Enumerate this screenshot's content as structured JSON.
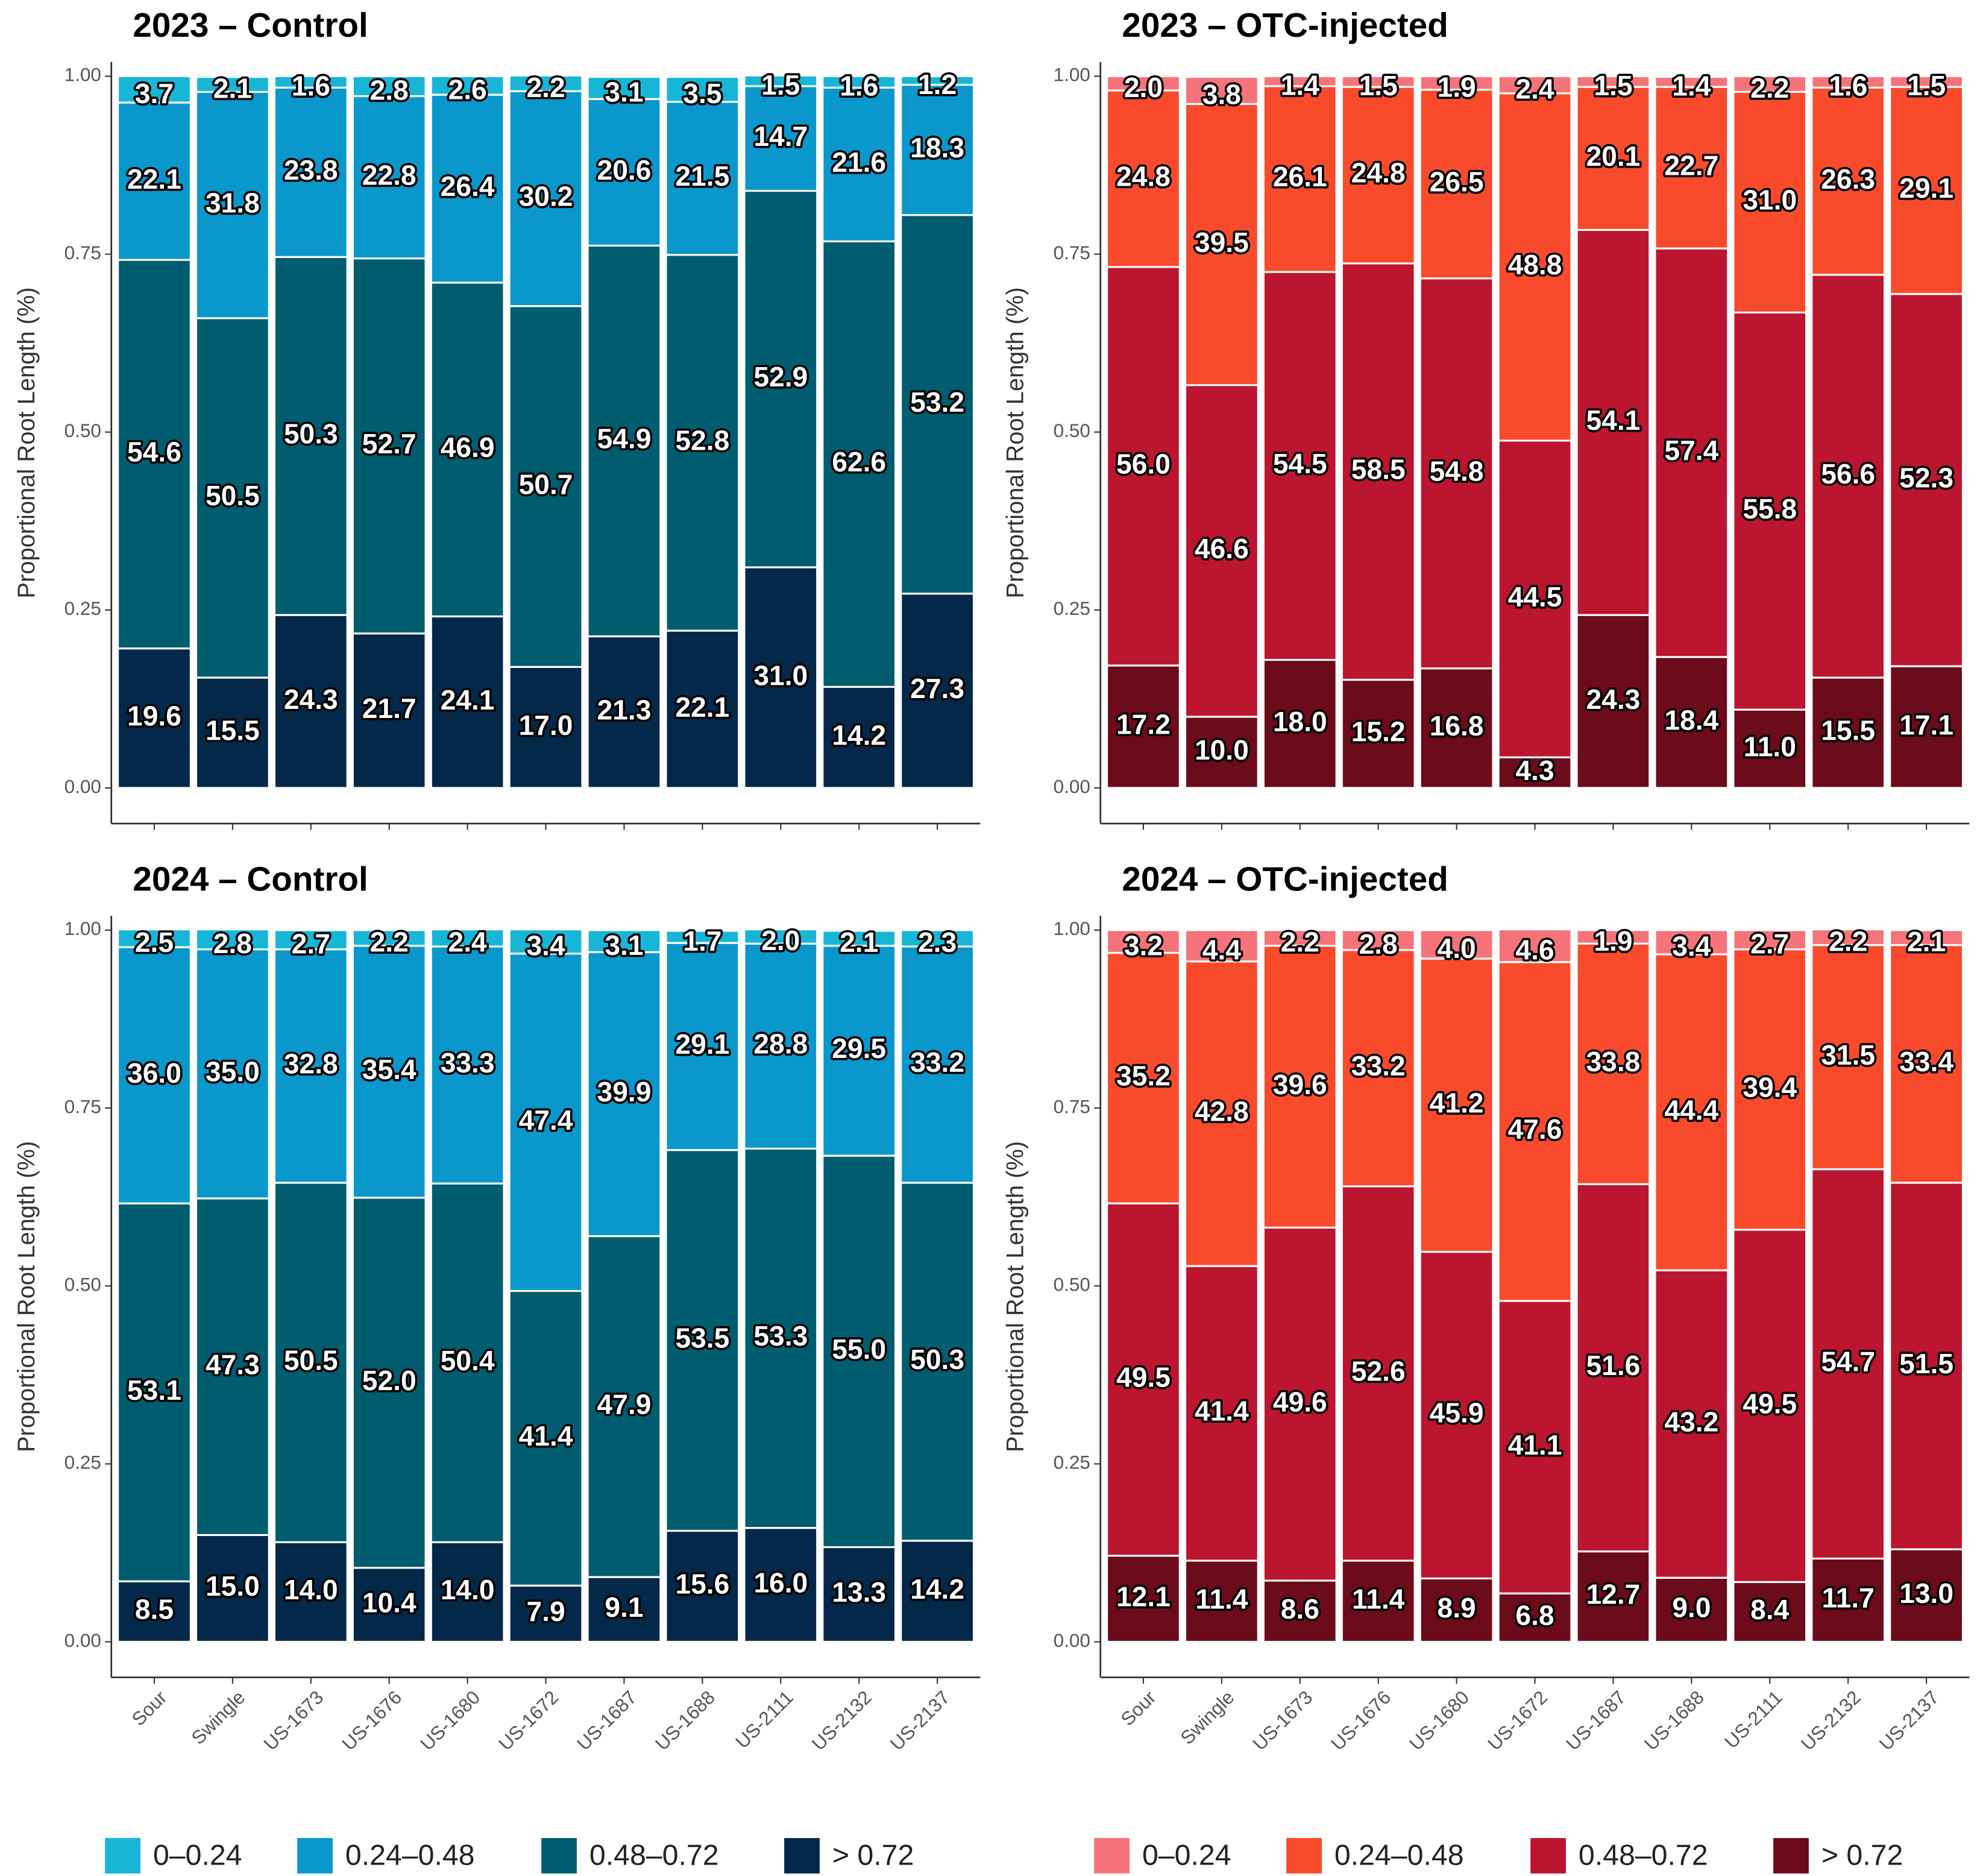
{
  "chart_data": [
    {
      "type": "bar",
      "stacked": true,
      "title": "2023 – Control",
      "y_label": "Proportional Root Length (%)",
      "categories": [
        "Sour",
        "Swingle",
        "US-1673",
        "US-1676",
        "US-1680",
        "US-1672",
        "US-1687",
        "US-1688",
        "US-2111",
        "US-2132",
        "US-2137"
      ],
      "series": [
        {
          "name": "0–0.24",
          "color": "#17b6d6",
          "values": [
            0.037,
            0.021,
            0.016,
            0.028,
            0.026,
            0.022,
            0.031,
            0.035,
            0.015,
            0.016,
            0.012
          ],
          "value_labels": [
            "3.7",
            "2.1",
            "1.6",
            "2.8",
            "2.6",
            "2.2",
            "3.1",
            "3.5",
            "1.5",
            "1.6",
            "1.2"
          ]
        },
        {
          "name": "0.24–0.48",
          "color": "#0a98cc",
          "values": [
            0.221,
            0.318,
            0.238,
            0.228,
            0.264,
            0.302,
            0.206,
            0.215,
            0.147,
            0.216,
            0.183
          ],
          "value_labels": [
            "22.1",
            "31.8",
            "23.8",
            "22.8",
            "26.4",
            "30.2",
            "20.6",
            "21.5",
            "14.7",
            "21.6",
            "18.3"
          ]
        },
        {
          "name": "0.48–0.72",
          "color": "#005d70",
          "values": [
            0.546,
            0.505,
            0.503,
            0.527,
            0.469,
            0.507,
            0.549,
            0.528,
            0.529,
            0.626,
            0.532
          ],
          "value_labels": [
            "54.6",
            "50.5",
            "50.3",
            "52.7",
            "46.9",
            "50.7",
            "54.9",
            "52.8",
            "52.9",
            "62.6",
            "53.2"
          ]
        },
        {
          "name": "> 0.72",
          "color": "#03284a",
          "values": [
            0.196,
            0.155,
            0.243,
            0.217,
            0.241,
            0.17,
            0.213,
            0.221,
            0.31,
            0.142,
            0.273
          ],
          "value_labels": [
            "19.6",
            "15.5",
            "24.3",
            "21.7",
            "24.1",
            "17.0",
            "21.3",
            "22.1",
            "31.0",
            "14.2",
            "27.3"
          ]
        }
      ],
      "ylim": [
        -0.05,
        1.02
      ],
      "yticks": [
        {
          "value": 0,
          "label": "0.00"
        },
        {
          "value": 0.25,
          "label": "0.25"
        },
        {
          "value": 0.5,
          "label": "0.50"
        },
        {
          "value": 0.75,
          "label": "0.75"
        },
        {
          "value": 1,
          "label": "1.00"
        }
      ],
      "show_x_labels": false,
      "show_legend": false
    },
    {
      "type": "bar",
      "stacked": true,
      "title": "2023 – OTC-injected",
      "y_label": "Proportional Root Length (%)",
      "categories": [
        "Sour",
        "Swingle",
        "US-1673",
        "US-1676",
        "US-1680",
        "US-1672",
        "US-1687",
        "US-1688",
        "US-2111",
        "US-2132",
        "US-2137"
      ],
      "series": [
        {
          "name": "0–0.24",
          "color": "#f7737a",
          "values": [
            0.02,
            0.038,
            0.014,
            0.015,
            0.019,
            0.024,
            0.015,
            0.014,
            0.022,
            0.016,
            0.015
          ],
          "value_labels": [
            "2.0",
            "3.8",
            "1.4",
            "1.5",
            "1.9",
            "2.4",
            "1.5",
            "1.4",
            "2.2",
            "1.6",
            "1.5"
          ]
        },
        {
          "name": "0.24–0.48",
          "color": "#fa4a2c",
          "values": [
            0.248,
            0.395,
            0.261,
            0.248,
            0.265,
            0.488,
            0.201,
            0.227,
            0.31,
            0.263,
            0.291
          ],
          "value_labels": [
            "24.8",
            "39.5",
            "26.1",
            "24.8",
            "26.5",
            "48.8",
            "20.1",
            "22.7",
            "31.0",
            "26.3",
            "29.1"
          ]
        },
        {
          "name": "0.48–0.72",
          "color": "#bc1530",
          "values": [
            0.56,
            0.466,
            0.545,
            0.585,
            0.548,
            0.445,
            0.541,
            0.574,
            0.558,
            0.566,
            0.523
          ],
          "value_labels": [
            "56.0",
            "46.6",
            "54.5",
            "58.5",
            "54.8",
            "44.5",
            "54.1",
            "57.4",
            "55.8",
            "56.6",
            "52.3"
          ]
        },
        {
          "name": "> 0.72",
          "color": "#6c0b1a",
          "values": [
            0.172,
            0.1,
            0.18,
            0.152,
            0.168,
            0.043,
            0.243,
            0.184,
            0.11,
            0.155,
            0.171
          ],
          "value_labels": [
            "17.2",
            "10.0",
            "18.0",
            "15.2",
            "16.8",
            "4.3",
            "24.3",
            "18.4",
            "11.0",
            "15.5",
            "17.1"
          ]
        }
      ],
      "ylim": [
        -0.05,
        1.02
      ],
      "yticks": [
        {
          "value": 0,
          "label": "0.00"
        },
        {
          "value": 0.25,
          "label": "0.25"
        },
        {
          "value": 0.5,
          "label": "0.50"
        },
        {
          "value": 0.75,
          "label": "0.75"
        },
        {
          "value": 1,
          "label": "1.00"
        }
      ],
      "show_x_labels": false,
      "show_legend": false
    },
    {
      "type": "bar",
      "stacked": true,
      "title": "2024 – Control",
      "y_label": "Proportional Root Length (%)",
      "categories": [
        "Sour",
        "Swingle",
        "US-1673",
        "US-1676",
        "US-1680",
        "US-1672",
        "US-1687",
        "US-1688",
        "US-2111",
        "US-2132",
        "US-2137"
      ],
      "series": [
        {
          "name": "0–0.24",
          "color": "#17b6d6",
          "values": [
            0.025,
            0.028,
            0.027,
            0.022,
            0.024,
            0.034,
            0.031,
            0.017,
            0.02,
            0.021,
            0.023
          ],
          "value_labels": [
            "2.5",
            "2.8",
            "2.7",
            "2.2",
            "2.4",
            "3.4",
            "3.1",
            "1.7",
            "2.0",
            "2.1",
            "2.3"
          ]
        },
        {
          "name": "0.24–0.48",
          "color": "#0a98cc",
          "values": [
            0.36,
            0.35,
            0.328,
            0.354,
            0.333,
            0.474,
            0.399,
            0.291,
            0.288,
            0.295,
            0.332
          ],
          "value_labels": [
            "36.0",
            "35.0",
            "32.8",
            "35.4",
            "33.3",
            "47.4",
            "39.9",
            "29.1",
            "28.8",
            "29.5",
            "33.2"
          ]
        },
        {
          "name": "0.48–0.72",
          "color": "#005d70",
          "values": [
            0.531,
            0.473,
            0.505,
            0.52,
            0.504,
            0.414,
            0.479,
            0.535,
            0.533,
            0.55,
            0.503
          ],
          "value_labels": [
            "53.1",
            "47.3",
            "50.5",
            "52.0",
            "50.4",
            "41.4",
            "47.9",
            "53.5",
            "53.3",
            "55.0",
            "50.3"
          ]
        },
        {
          "name": "> 0.72",
          "color": "#03284a",
          "values": [
            0.085,
            0.15,
            0.14,
            0.104,
            0.14,
            0.079,
            0.091,
            0.156,
            0.16,
            0.133,
            0.142
          ],
          "value_labels": [
            "8.5",
            "15.0",
            "14.0",
            "10.4",
            "14.0",
            "7.9",
            "9.1",
            "15.6",
            "16.0",
            "13.3",
            "14.2"
          ]
        }
      ],
      "ylim": [
        -0.05,
        1.02
      ],
      "yticks": [
        {
          "value": 0,
          "label": "0.00"
        },
        {
          "value": 0.25,
          "label": "0.25"
        },
        {
          "value": 0.5,
          "label": "0.50"
        },
        {
          "value": 0.75,
          "label": "0.75"
        },
        {
          "value": 1,
          "label": "1.00"
        }
      ],
      "show_x_labels": true,
      "show_legend": true
    },
    {
      "type": "bar",
      "stacked": true,
      "title": "2024 – OTC-injected",
      "y_label": "Proportional Root Length (%)",
      "categories": [
        "Sour",
        "Swingle",
        "US-1673",
        "US-1676",
        "US-1680",
        "US-1672",
        "US-1687",
        "US-1688",
        "US-2111",
        "US-2132",
        "US-2137"
      ],
      "series": [
        {
          "name": "0–0.24",
          "color": "#f7737a",
          "values": [
            0.032,
            0.044,
            0.022,
            0.028,
            0.04,
            0.046,
            0.019,
            0.034,
            0.027,
            0.022,
            0.021
          ],
          "value_labels": [
            "3.2",
            "4.4",
            "2.2",
            "2.8",
            "4.0",
            "4.6",
            "1.9",
            "3.4",
            "2.7",
            "2.2",
            "2.1"
          ]
        },
        {
          "name": "0.24–0.48",
          "color": "#fa4a2c",
          "values": [
            0.352,
            0.428,
            0.396,
            0.332,
            0.412,
            0.476,
            0.338,
            0.444,
            0.394,
            0.315,
            0.334
          ],
          "value_labels": [
            "35.2",
            "42.8",
            "39.6",
            "33.2",
            "41.2",
            "47.6",
            "33.8",
            "44.4",
            "39.4",
            "31.5",
            "33.4"
          ]
        },
        {
          "name": "0.48–0.72",
          "color": "#bc1530",
          "values": [
            0.495,
            0.414,
            0.496,
            0.526,
            0.459,
            0.411,
            0.516,
            0.432,
            0.495,
            0.547,
            0.515
          ],
          "value_labels": [
            "49.5",
            "41.4",
            "49.6",
            "52.6",
            "45.9",
            "41.1",
            "51.6",
            "43.2",
            "49.5",
            "54.7",
            "51.5"
          ]
        },
        {
          "name": "> 0.72",
          "color": "#6c0b1a",
          "values": [
            0.121,
            0.114,
            0.086,
            0.114,
            0.089,
            0.068,
            0.127,
            0.09,
            0.084,
            0.117,
            0.13
          ],
          "value_labels": [
            "12.1",
            "11.4",
            "8.6",
            "11.4",
            "8.9",
            "6.8",
            "12.7",
            "9.0",
            "8.4",
            "11.7",
            "13.0"
          ]
        }
      ],
      "ylim": [
        -0.05,
        1.02
      ],
      "yticks": [
        {
          "value": 0,
          "label": "0.00"
        },
        {
          "value": 0.25,
          "label": "0.25"
        },
        {
          "value": 0.5,
          "label": "0.50"
        },
        {
          "value": 0.75,
          "label": "0.75"
        },
        {
          "value": 1,
          "label": "1.00"
        }
      ],
      "show_x_labels": true,
      "show_legend": true
    }
  ]
}
